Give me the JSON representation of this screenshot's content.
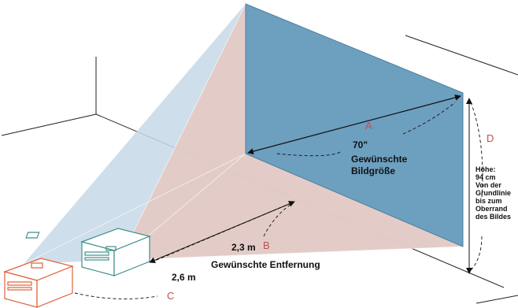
{
  "labels": {
    "A": "A",
    "B": "B",
    "C": "C",
    "D": "D",
    "size_value": "70\"",
    "size_caption_1": "Gewünschte",
    "size_caption_2": "Bildgröße",
    "distance_b": "2,3 m",
    "distance_c": "2,6 m",
    "distance_caption": "Gewünschte Entfernung",
    "height_lines": [
      "Höhe:",
      "94 cm",
      "Von der",
      "Grundlinie",
      "bis zum",
      "Oberrand",
      "des Bildes"
    ]
  },
  "colors": {
    "screen": "#6d9fbf",
    "beam_blue": "#c5d9e8",
    "beam_pink": "#e6c9c2",
    "projector_near": "#3f8f8a",
    "projector_far": "#e0603a",
    "label_red": "#c0504d"
  }
}
